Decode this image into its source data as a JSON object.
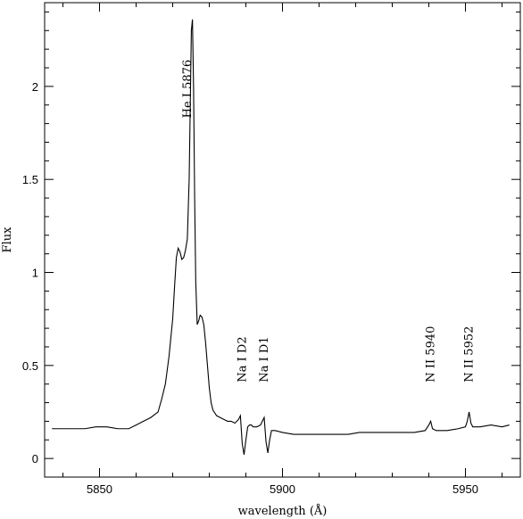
{
  "chart_data": {
    "type": "line",
    "title": "",
    "xlabel": "wavelength (Å)",
    "ylabel": "Flux",
    "xlim": [
      5835,
      5965
    ],
    "ylim": [
      -0.1,
      2.45
    ],
    "x_ticks": [
      5850,
      5900,
      5950
    ],
    "x_tick_labels": [
      "5850",
      "5900",
      "5950"
    ],
    "y_ticks": [
      0,
      0.5,
      1,
      1.5,
      2
    ],
    "y_tick_labels": [
      "0",
      "0.5",
      "1",
      "1.5",
      "2"
    ],
    "grid": false,
    "legend": "none",
    "line_color": "#000000",
    "series": [
      {
        "x": [
          5837,
          5840,
          5843,
          5846,
          5849,
          5852,
          5855,
          5858,
          5860,
          5862,
          5864,
          5866,
          5867,
          5868,
          5869,
          5870,
          5870.5,
          5871,
          5871.5,
          5872,
          5872.5,
          5873,
          5873.5,
          5874,
          5874.5,
          5874.8,
          5875.1,
          5875.4,
          5875.7,
          5876,
          5876.3,
          5876.7,
          5877.1,
          5877.5,
          5878,
          5878.5,
          5879,
          5879.5,
          5880,
          5880.5,
          5881,
          5882,
          5883,
          5884,
          5885,
          5886,
          5887,
          5888,
          5888.5,
          5889,
          5889.5,
          5890,
          5890.5,
          5891,
          5891.5,
          5892,
          5893,
          5894,
          5894.5,
          5895,
          5895.5,
          5896,
          5896.5,
          5897,
          5898,
          5900,
          5903,
          5906,
          5909,
          5912,
          5915,
          5918,
          5921,
          5924,
          5927,
          5930,
          5933,
          5936,
          5939,
          5940,
          5940.5,
          5941,
          5942,
          5945,
          5948,
          5950,
          5950.5,
          5951,
          5951.5,
          5952,
          5954,
          5957,
          5960,
          5962
        ],
        "y": [
          0.16,
          0.16,
          0.16,
          0.16,
          0.17,
          0.17,
          0.16,
          0.16,
          0.18,
          0.2,
          0.22,
          0.25,
          0.32,
          0.4,
          0.55,
          0.75,
          0.92,
          1.08,
          1.13,
          1.11,
          1.07,
          1.08,
          1.12,
          1.18,
          1.5,
          1.9,
          2.3,
          2.36,
          2.0,
          1.4,
          0.95,
          0.72,
          0.74,
          0.77,
          0.76,
          0.72,
          0.62,
          0.5,
          0.38,
          0.3,
          0.26,
          0.23,
          0.22,
          0.21,
          0.2,
          0.2,
          0.19,
          0.21,
          0.23,
          0.08,
          0.02,
          0.1,
          0.17,
          0.18,
          0.18,
          0.17,
          0.17,
          0.18,
          0.2,
          0.22,
          0.09,
          0.03,
          0.1,
          0.15,
          0.15,
          0.14,
          0.13,
          0.13,
          0.13,
          0.13,
          0.13,
          0.13,
          0.14,
          0.14,
          0.14,
          0.14,
          0.14,
          0.14,
          0.15,
          0.18,
          0.2,
          0.16,
          0.15,
          0.15,
          0.16,
          0.17,
          0.2,
          0.25,
          0.19,
          0.17,
          0.17,
          0.18,
          0.17,
          0.18
        ]
      }
    ],
    "annotations": [
      {
        "text": "He I 5876",
        "x": 5874,
        "y": 1.83
      },
      {
        "text": "Na I D2",
        "x": 5889,
        "y": 0.41
      },
      {
        "text": "Na I D1",
        "x": 5895,
        "y": 0.41
      },
      {
        "text": "N II 5940",
        "x": 5940.5,
        "y": 0.41
      },
      {
        "text": "N II 5952",
        "x": 5951,
        "y": 0.41
      }
    ]
  }
}
